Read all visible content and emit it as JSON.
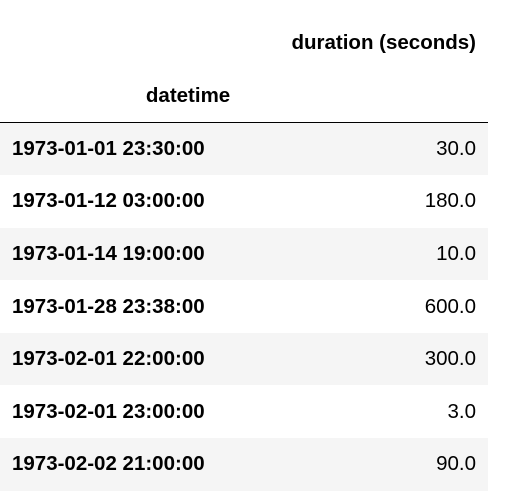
{
  "table": {
    "column_header": "duration (seconds)",
    "index_name": "datetime",
    "rows": [
      {
        "index": "1973-01-01 23:30:00",
        "value": "30.0"
      },
      {
        "index": "1973-01-12 03:00:00",
        "value": "180.0"
      },
      {
        "index": "1973-01-14 19:00:00",
        "value": "10.0"
      },
      {
        "index": "1973-01-28 23:38:00",
        "value": "600.0"
      },
      {
        "index": "1973-02-01 22:00:00",
        "value": "300.0"
      },
      {
        "index": "1973-02-01 23:00:00",
        "value": "3.0"
      },
      {
        "index": "1973-02-02 21:00:00",
        "value": "90.0"
      }
    ]
  },
  "colors": {
    "row_stripe": "#f5f5f5",
    "header_rule": "#000000"
  }
}
